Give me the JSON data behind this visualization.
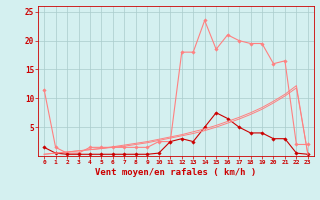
{
  "x": [
    0,
    1,
    2,
    3,
    4,
    5,
    6,
    7,
    8,
    9,
    10,
    11,
    12,
    13,
    14,
    15,
    16,
    17,
    18,
    19,
    20,
    21,
    22,
    23
  ],
  "line1_y": [
    11.5,
    1.5,
    0.5,
    0.5,
    1.5,
    1.5,
    1.5,
    1.5,
    1.5,
    1.5,
    2.5,
    2.5,
    18.0,
    18.0,
    23.5,
    18.5,
    21.0,
    20.0,
    19.5,
    19.5,
    16.0,
    16.5,
    2.0,
    2.0
  ],
  "line2_y": [
    1.5,
    0.5,
    0.3,
    0.3,
    0.3,
    0.3,
    0.3,
    0.3,
    0.3,
    0.3,
    0.5,
    2.5,
    3.0,
    2.5,
    5.0,
    7.5,
    6.5,
    5.0,
    4.0,
    4.0,
    3.0,
    3.0,
    0.5,
    0.3
  ],
  "line3_y": [
    0.3,
    0.5,
    0.7,
    0.9,
    1.1,
    1.3,
    1.6,
    1.9,
    2.2,
    2.5,
    2.9,
    3.3,
    3.7,
    4.2,
    4.7,
    5.3,
    6.0,
    6.7,
    7.5,
    8.4,
    9.5,
    10.7,
    12.2,
    0.3
  ],
  "line4_y": [
    0.3,
    0.5,
    0.7,
    0.9,
    1.1,
    1.3,
    1.5,
    1.7,
    2.0,
    2.3,
    2.7,
    3.1,
    3.5,
    3.9,
    4.4,
    5.0,
    5.7,
    6.4,
    7.2,
    8.1,
    9.2,
    10.4,
    11.8,
    0.3
  ],
  "line1_color": "#ff8080",
  "line2_color": "#cc0000",
  "line3_color": "#ff8080",
  "line4_color": "#ff8080",
  "bg_color": "#d4f0f0",
  "grid_color": "#aacccc",
  "axis_color": "#cc0000",
  "xlabel": "Vent moyen/en rafales ( km/h )",
  "ylim": [
    0,
    26
  ],
  "xlim": [
    -0.5,
    23.5
  ],
  "yticks": [
    5,
    10,
    15,
    20,
    25
  ],
  "xticks": [
    0,
    1,
    2,
    3,
    4,
    5,
    6,
    7,
    8,
    9,
    10,
    11,
    12,
    13,
    14,
    15,
    16,
    17,
    18,
    19,
    20,
    21,
    22,
    23
  ]
}
